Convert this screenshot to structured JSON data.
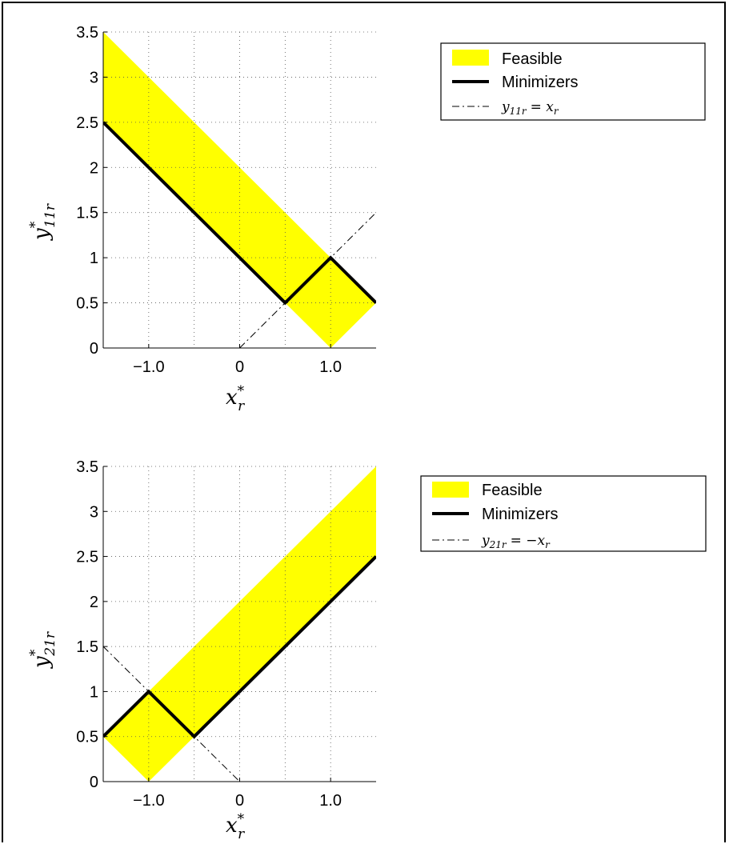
{
  "chart_data": [
    {
      "type": "area",
      "xlabel": "x*_r",
      "ylabel": "y*_11r",
      "xlim": [
        -1.5,
        1.5
      ],
      "ylim": [
        0,
        3.5
      ],
      "x_ticks": [
        -1.0,
        0,
        1.0
      ],
      "x_tick_labels": [
        "−1.0",
        "0",
        "1.0"
      ],
      "y_ticks": [
        0,
        0.5,
        1,
        1.5,
        2,
        2.5,
        3,
        3.5
      ],
      "y_tick_labels": [
        "0",
        "0.5",
        "1",
        "1.5",
        "2",
        "2.5",
        "3",
        "3.5"
      ],
      "grid": true,
      "legend_position": "top-right outside",
      "series": [
        {
          "name": "Feasible",
          "kind": "region",
          "color": "#ffff00",
          "x": [
            -1.5,
            1.0,
            1.5,
            1.0,
            0.5,
            -1.5
          ],
          "y": [
            3.5,
            1.0,
            0.5,
            0.0,
            0.5,
            2.5
          ]
        },
        {
          "name": "Minimizers",
          "kind": "line",
          "color": "#000000",
          "x": [
            -1.5,
            0.5,
            1.0,
            1.5
          ],
          "y": [
            2.5,
            0.5,
            1.0,
            0.5
          ]
        },
        {
          "name": "y_11r = x_r",
          "kind": "dashdot",
          "color": "#000000",
          "x": [
            0.0,
            1.5
          ],
          "y": [
            0.0,
            1.5
          ]
        }
      ]
    },
    {
      "type": "area",
      "xlabel": "x*_r",
      "ylabel": "y*_21r",
      "xlim": [
        -1.5,
        1.5
      ],
      "ylim": [
        0,
        3.5
      ],
      "x_ticks": [
        -1.0,
        0,
        1.0
      ],
      "x_tick_labels": [
        "−1.0",
        "0",
        "1.0"
      ],
      "y_ticks": [
        0,
        0.5,
        1,
        1.5,
        2,
        2.5,
        3,
        3.5
      ],
      "y_tick_labels": [
        "0",
        "0.5",
        "1",
        "1.5",
        "2",
        "2.5",
        "3",
        "3.5"
      ],
      "grid": true,
      "legend_position": "top-right outside",
      "series": [
        {
          "name": "Feasible",
          "kind": "region",
          "color": "#ffff00",
          "x": [
            -1.5,
            -1.0,
            1.5,
            1.5,
            -0.5,
            -1.0
          ],
          "y": [
            0.5,
            1.0,
            3.5,
            2.5,
            0.5,
            0.0
          ]
        },
        {
          "name": "Minimizers",
          "kind": "line",
          "color": "#000000",
          "x": [
            -1.5,
            -1.0,
            -0.5,
            1.5
          ],
          "y": [
            0.5,
            1.0,
            0.5,
            2.5
          ]
        },
        {
          "name": "y_21r = −x_r",
          "kind": "dashdot",
          "color": "#000000",
          "x": [
            -1.5,
            0.0
          ],
          "y": [
            1.5,
            0.0
          ]
        }
      ]
    }
  ],
  "legends": [
    {
      "feasible": "Feasible",
      "minimizers": "Minimizers",
      "ref_y": "y",
      "ref_sub": "11r",
      "ref_rhs": "= x",
      "ref_rhs_sub": "r"
    },
    {
      "feasible": "Feasible",
      "minimizers": "Minimizers",
      "ref_y": "y",
      "ref_sub": "21r",
      "ref_rhs": "= −x",
      "ref_rhs_sub": "r"
    }
  ],
  "labels": [
    {
      "x_main": "x",
      "x_sup": "*",
      "x_sub": "r",
      "y_main": "y",
      "y_sup": "*",
      "y_sub": "11r"
    },
    {
      "x_main": "x",
      "x_sup": "*",
      "x_sub": "r",
      "y_main": "y",
      "y_sup": "*",
      "y_sub": "21r"
    }
  ]
}
